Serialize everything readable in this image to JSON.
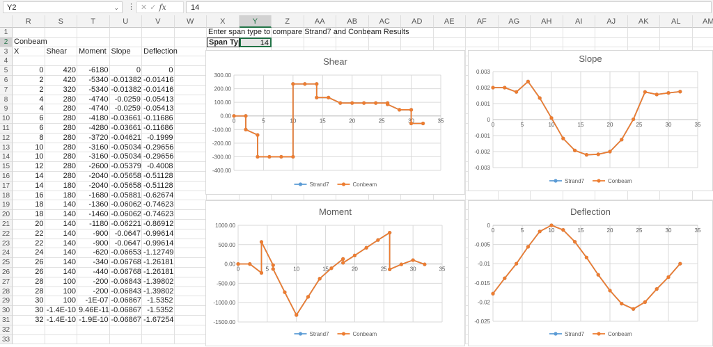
{
  "formula_bar": {
    "name_box": "Y2",
    "formula": "14",
    "fx": "fx"
  },
  "columns": [
    "R",
    "S",
    "T",
    "U",
    "V",
    "W",
    "X",
    "Y",
    "Z",
    "AA",
    "AB",
    "AC",
    "AD",
    "AE",
    "AF",
    "AG",
    "AH",
    "AI",
    "AJ",
    "AK",
    "AL",
    "AM"
  ],
  "selected_column": "Y",
  "selected_row": 2,
  "instruction": "Enter span type to compare Strand7 and Conbeam Results",
  "span_type_label": "Span Type",
  "span_type_value": "14",
  "table": {
    "title": "Conbeam",
    "headers": [
      "X",
      "Shear",
      "Moment",
      "Slope",
      "Deflection"
    ],
    "rows": [
      [
        "0",
        "420",
        "-6180",
        "0",
        "0"
      ],
      [
        "2",
        "420",
        "-5340",
        "-0.01382",
        "-0.01416"
      ],
      [
        "2",
        "320",
        "-5340",
        "-0.01382",
        "-0.01416"
      ],
      [
        "4",
        "280",
        "-4740",
        "-0.0259",
        "-0.05413"
      ],
      [
        "4",
        "280",
        "-4740",
        "-0.0259",
        "-0.05413"
      ],
      [
        "6",
        "280",
        "-4180",
        "-0.03661",
        "-0.11686"
      ],
      [
        "6",
        "280",
        "-4280",
        "-0.03661",
        "-0.11686"
      ],
      [
        "8",
        "280",
        "-3720",
        "-0.04621",
        "-0.1999"
      ],
      [
        "10",
        "280",
        "-3160",
        "-0.05034",
        "-0.29656"
      ],
      [
        "10",
        "280",
        "-3160",
        "-0.05034",
        "-0.29656"
      ],
      [
        "12",
        "280",
        "-2600",
        "-0.05379",
        "-0.4008"
      ],
      [
        "14",
        "280",
        "-2040",
        "-0.05658",
        "-0.51128"
      ],
      [
        "14",
        "180",
        "-2040",
        "-0.05658",
        "-0.51128"
      ],
      [
        "16",
        "180",
        "-1680",
        "-0.05881",
        "-0.62674"
      ],
      [
        "18",
        "140",
        "-1360",
        "-0.06062",
        "-0.74623"
      ],
      [
        "18",
        "140",
        "-1460",
        "-0.06062",
        "-0.74623"
      ],
      [
        "20",
        "140",
        "-1180",
        "-0.06221",
        "-0.86912"
      ],
      [
        "22",
        "140",
        "-900",
        "-0.0647",
        "-0.99614"
      ],
      [
        "22",
        "140",
        "-900",
        "-0.0647",
        "-0.99614"
      ],
      [
        "24",
        "140",
        "-620",
        "-0.06653",
        "-1.12749"
      ],
      [
        "26",
        "140",
        "-340",
        "-0.06768",
        "-1.26181"
      ],
      [
        "26",
        "140",
        "-440",
        "-0.06768",
        "-1.26181"
      ],
      [
        "28",
        "100",
        "-200",
        "-0.06843",
        "-1.39802"
      ],
      [
        "28",
        "100",
        "-200",
        "-0.06843",
        "-1.39802"
      ],
      [
        "30",
        "100",
        "-1E-07",
        "-0.06867",
        "-1.5352"
      ],
      [
        "30",
        "-1.4E-10",
        "9.46E-11",
        "-0.06867",
        "-1.5352"
      ],
      [
        "32",
        "-1.4E-10",
        "-1.9E-10",
        "-0.06867",
        "-1.67254"
      ]
    ]
  },
  "colors": {
    "strand7": "#5b9bd5",
    "conbeam": "#ed7d31",
    "grid": "#d9d9d9",
    "accent": "#217346"
  },
  "chart_data": [
    {
      "type": "line",
      "title": "Shear",
      "xlim": [
        0,
        35
      ],
      "xticks": [
        "0",
        "5",
        "10",
        "15",
        "20",
        "25",
        "30",
        "35"
      ],
      "ylim": [
        -400,
        300
      ],
      "yticks": [
        "300.00",
        "200.00",
        "100.00",
        "0.00",
        "-100.00",
        "-200.00",
        "-300.00",
        "-400.00"
      ],
      "ystep": 100,
      "legend": "bottom",
      "series": [
        {
          "name": "Strand7",
          "x": [
            0,
            2,
            2,
            4,
            4,
            6,
            8,
            10,
            10,
            12,
            14,
            14,
            16,
            18,
            20,
            22,
            24,
            26,
            26,
            28,
            30,
            30,
            32
          ],
          "y": [
            0,
            0,
            -100,
            -140,
            -300,
            -300,
            -300,
            -300,
            235,
            235,
            235,
            135,
            135,
            95,
            95,
            95,
            95,
            95,
            85,
            45,
            45,
            -55,
            -55
          ]
        },
        {
          "name": "Conbeam",
          "x": [
            0,
            2,
            2,
            4,
            4,
            6,
            8,
            10,
            10,
            12,
            14,
            14,
            16,
            18,
            20,
            22,
            24,
            26,
            26,
            28,
            30,
            30,
            32
          ],
          "y": [
            0,
            0,
            -100,
            -140,
            -300,
            -300,
            -300,
            -300,
            235,
            235,
            235,
            135,
            135,
            95,
            95,
            95,
            95,
            95,
            85,
            45,
            45,
            -55,
            -55
          ]
        }
      ]
    },
    {
      "type": "line",
      "title": "Slope",
      "xlim": [
        0,
        35
      ],
      "xticks": [
        "0",
        "5",
        "10",
        "15",
        "20",
        "25",
        "30",
        "35"
      ],
      "ylim": [
        -0.003,
        0.003
      ],
      "yticks": [
        "0.003",
        "0.002",
        "0.001",
        "0",
        "-0.001",
        "-0.002",
        "-0.003"
      ],
      "ystep": 0.001,
      "legend": "bottom",
      "series": [
        {
          "name": "Strand7",
          "x": [
            0,
            2,
            4,
            6,
            8,
            10,
            12,
            14,
            16,
            18,
            20,
            22,
            24,
            26,
            28,
            30,
            32
          ],
          "y": [
            0.002,
            0.002,
            0.00173,
            0.00238,
            0.00135,
            0.0001,
            -0.00118,
            -0.00193,
            -0.0022,
            -0.00217,
            -0.002,
            -0.00125,
            2e-05,
            0.00173,
            0.00157,
            0.00167,
            0.00175
          ]
        },
        {
          "name": "Conbeam",
          "x": [
            0,
            2,
            4,
            6,
            8,
            10,
            12,
            14,
            16,
            18,
            20,
            22,
            24,
            26,
            28,
            30,
            32
          ],
          "y": [
            0.002,
            0.002,
            0.00173,
            0.00238,
            0.00135,
            0.0001,
            -0.00118,
            -0.00193,
            -0.0022,
            -0.00217,
            -0.002,
            -0.00125,
            2e-05,
            0.00173,
            0.00157,
            0.00167,
            0.00175
          ]
        }
      ]
    },
    {
      "type": "line",
      "title": "Moment",
      "xlim": [
        0,
        35
      ],
      "xticks": [
        "0",
        "5",
        "10",
        "15",
        "20",
        "25",
        "30",
        "35"
      ],
      "ylim": [
        -1500,
        1000
      ],
      "yticks": [
        "1000.00",
        "500.00",
        "0.00",
        "-500.00",
        "-1000.00",
        "-1500.00"
      ],
      "ystep": 500,
      "legend": "bottom",
      "series": [
        {
          "name": "Strand7",
          "x": [
            0,
            2,
            4,
            4,
            6,
            6,
            8,
            10,
            12,
            14,
            16,
            18,
            18,
            20,
            22,
            24,
            26,
            26,
            28,
            30,
            32
          ],
          "y": [
            0,
            0,
            -230,
            570,
            -30,
            -130,
            -730,
            -1320,
            -850,
            -380,
            -110,
            130,
            30,
            220,
            420,
            620,
            810,
            -140,
            -10,
            100,
            -10
          ]
        },
        {
          "name": "Conbeam",
          "x": [
            0,
            2,
            4,
            4,
            6,
            6,
            8,
            10,
            12,
            14,
            16,
            18,
            18,
            20,
            22,
            24,
            26,
            26,
            28,
            30,
            32
          ],
          "y": [
            0,
            0,
            -230,
            570,
            -30,
            -130,
            -730,
            -1320,
            -850,
            -380,
            -110,
            130,
            30,
            220,
            420,
            620,
            810,
            -140,
            -10,
            100,
            -10
          ]
        }
      ]
    },
    {
      "type": "line",
      "title": "Deflection",
      "xlim": [
        0,
        35
      ],
      "xticks": [
        "0",
        "5",
        "10",
        "15",
        "20",
        "25",
        "30",
        "35"
      ],
      "ylim": [
        -0.025,
        0
      ],
      "yticks": [
        "0",
        "-0.005",
        "-0.01",
        "-0.015",
        "-0.02",
        "-0.025"
      ],
      "ystep": 0.005,
      "legend": "bottom",
      "series": [
        {
          "name": "Strand7",
          "x": [
            0,
            2,
            4,
            6,
            8,
            10,
            12,
            14,
            16,
            18,
            20,
            22,
            24,
            26,
            28,
            30,
            32
          ],
          "y": [
            -0.0178,
            -0.0138,
            -0.01,
            -0.0056,
            -0.0016,
            0,
            -0.0012,
            -0.0043,
            -0.0084,
            -0.0129,
            -0.017,
            -0.0204,
            -0.0218,
            -0.02,
            -0.0166,
            -0.0135,
            -0.01
          ]
        },
        {
          "name": "Conbeam",
          "x": [
            0,
            2,
            4,
            6,
            8,
            10,
            12,
            14,
            16,
            18,
            20,
            22,
            24,
            26,
            28,
            30,
            32
          ],
          "y": [
            -0.0178,
            -0.0138,
            -0.01,
            -0.0056,
            -0.0016,
            0,
            -0.0012,
            -0.0043,
            -0.0084,
            -0.0129,
            -0.017,
            -0.0204,
            -0.0218,
            -0.02,
            -0.0166,
            -0.0135,
            -0.01
          ]
        }
      ]
    }
  ]
}
